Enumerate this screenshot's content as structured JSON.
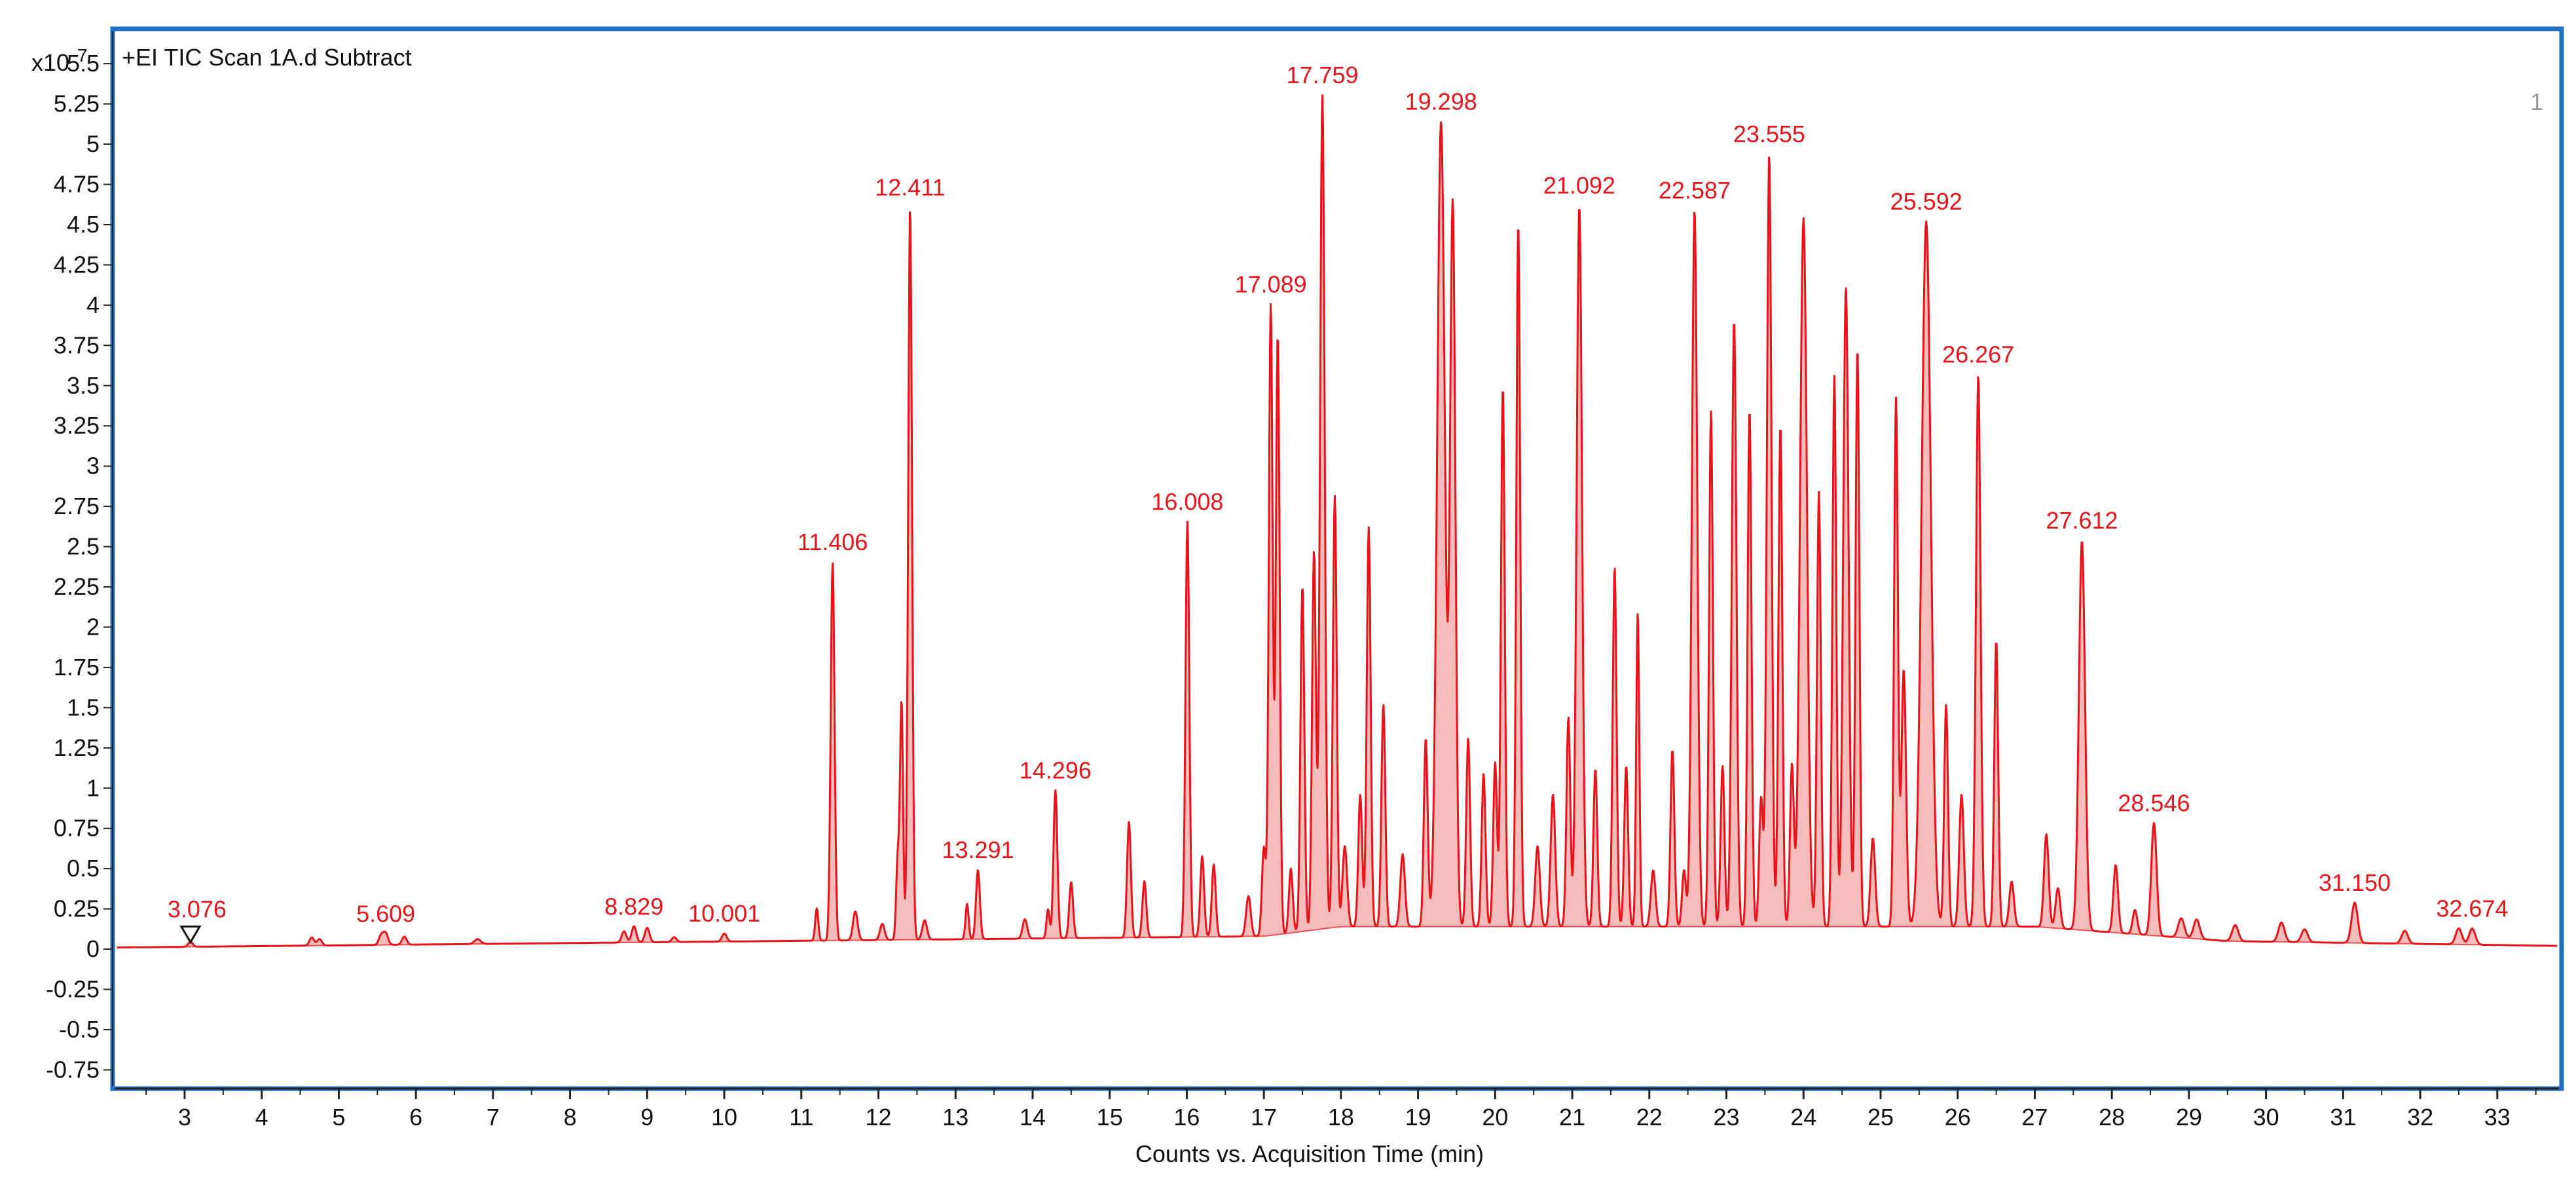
{
  "header": {
    "scale_label": "x10",
    "scale_exponent": "7",
    "trace_title": "+EI TIC Scan 1A.d  Subtract",
    "pane_number": "1"
  },
  "colors": {
    "trace": "#e8141a",
    "fill": "#f4b0b0",
    "frame": "#1f6fc4",
    "axis": "#222222"
  },
  "chart_data": {
    "type": "line",
    "title": "+EI TIC Scan 1A.d  Subtract",
    "xlabel": "Counts vs. Acquisition Time (min)",
    "ylabel": "",
    "y_scale_note": "x10^7",
    "xlim": [
      2.1,
      33.8
    ],
    "ylim": [
      -0.85,
      5.7
    ],
    "x_ticks": [
      3,
      4,
      5,
      6,
      7,
      8,
      9,
      10,
      11,
      12,
      13,
      14,
      15,
      16,
      17,
      18,
      19,
      20,
      21,
      22,
      23,
      24,
      25,
      26,
      27,
      28,
      29,
      30,
      31,
      32,
      33
    ],
    "y_ticks": [
      5.5,
      5.25,
      5,
      4.75,
      4.5,
      4.25,
      4,
      3.75,
      3.5,
      3.25,
      3,
      2.75,
      2.5,
      2.25,
      2,
      1.75,
      1.5,
      1.25,
      1,
      0.75,
      0.5,
      0.25,
      0,
      -0.25,
      -0.5,
      -0.75
    ],
    "y_tick_labels": [
      "5.5",
      "5.25",
      "5",
      "4.75",
      "4.5",
      "4.25",
      "4",
      "3.75",
      "3.5",
      "3.25",
      "3",
      "2.75",
      "2.5",
      "2.25",
      "2",
      "1.75",
      "1.5",
      "1.25",
      "1",
      "0.75",
      "0.5",
      "0.25",
      "0",
      "-0.25",
      "-0.5",
      "-0.75"
    ],
    "marker": {
      "x": 3.076,
      "label": "3.076"
    },
    "labeled_peaks": [
      {
        "label": "5.609",
        "x": 5.609,
        "y": 0.07
      },
      {
        "label": "8.829",
        "x": 8.829,
        "y": 0.1
      },
      {
        "label": "10.001",
        "x": 10.001,
        "y": 0.05
      },
      {
        "label": "11.406",
        "x": 11.406,
        "y": 2.35
      },
      {
        "label": "12.411",
        "x": 12.411,
        "y": 4.55
      },
      {
        "label": "13.291",
        "x": 13.291,
        "y": 0.43
      },
      {
        "label": "14.296",
        "x": 14.296,
        "y": 0.92
      },
      {
        "label": "16.008",
        "x": 16.008,
        "y": 2.58
      },
      {
        "label": "17.089",
        "x": 17.089,
        "y": 3.92
      },
      {
        "label": "17.759",
        "x": 17.759,
        "y": 5.18
      },
      {
        "label": "19.298",
        "x": 19.298,
        "y": 5.0
      },
      {
        "label": "21.092",
        "x": 21.092,
        "y": 4.48
      },
      {
        "label": "22.587",
        "x": 22.587,
        "y": 4.45
      },
      {
        "label": "23.555",
        "x": 23.555,
        "y": 4.8
      },
      {
        "label": "25.592",
        "x": 25.592,
        "y": 4.38
      },
      {
        "label": "26.267",
        "x": 26.267,
        "y": 3.43
      },
      {
        "label": "27.612",
        "x": 27.612,
        "y": 2.42
      },
      {
        "label": "28.546",
        "x": 28.546,
        "y": 0.7
      },
      {
        "label": "31.150",
        "x": 31.15,
        "y": 0.25
      },
      {
        "label": "32.674",
        "x": 32.674,
        "y": 0.1
      }
    ],
    "peaks": [
      [
        3.076,
        0.03,
        0.03
      ],
      [
        4.65,
        0.05,
        0.03
      ],
      [
        4.75,
        0.04,
        0.03
      ],
      [
        5.55,
        0.06,
        0.03
      ],
      [
        5.609,
        0.07,
        0.03
      ],
      [
        5.85,
        0.05,
        0.03
      ],
      [
        6.8,
        0.03,
        0.04
      ],
      [
        8.7,
        0.07,
        0.03
      ],
      [
        8.829,
        0.1,
        0.03
      ],
      [
        9.0,
        0.09,
        0.03
      ],
      [
        9.35,
        0.03,
        0.03
      ],
      [
        10.001,
        0.05,
        0.03
      ],
      [
        11.2,
        0.2,
        0.02
      ],
      [
        11.406,
        2.35,
        0.025
      ],
      [
        11.7,
        0.18,
        0.03
      ],
      [
        12.05,
        0.1,
        0.03
      ],
      [
        12.25,
        0.5,
        0.02
      ],
      [
        12.3,
        1.47,
        0.02
      ],
      [
        12.411,
        4.55,
        0.025
      ],
      [
        12.6,
        0.12,
        0.03
      ],
      [
        13.15,
        0.22,
        0.02
      ],
      [
        13.291,
        0.43,
        0.025
      ],
      [
        13.9,
        0.12,
        0.03
      ],
      [
        14.2,
        0.18,
        0.02
      ],
      [
        14.296,
        0.92,
        0.025
      ],
      [
        14.5,
        0.35,
        0.025
      ],
      [
        15.25,
        0.72,
        0.025
      ],
      [
        15.45,
        0.35,
        0.025
      ],
      [
        16.008,
        2.58,
        0.025
      ],
      [
        16.2,
        0.5,
        0.025
      ],
      [
        16.35,
        0.45,
        0.025
      ],
      [
        16.8,
        0.25,
        0.03
      ],
      [
        17.0,
        0.55,
        0.025
      ],
      [
        17.089,
        3.92,
        0.025
      ],
      [
        17.18,
        3.73,
        0.025
      ],
      [
        17.35,
        0.4,
        0.025
      ],
      [
        17.5,
        2.15,
        0.025
      ],
      [
        17.65,
        2.35,
        0.025
      ],
      [
        17.759,
        5.18,
        0.03
      ],
      [
        17.92,
        2.68,
        0.025
      ],
      [
        18.05,
        0.5,
        0.03
      ],
      [
        18.25,
        0.82,
        0.025
      ],
      [
        18.36,
        2.48,
        0.025
      ],
      [
        18.55,
        1.38,
        0.025
      ],
      [
        18.8,
        0.45,
        0.03
      ],
      [
        19.1,
        1.17,
        0.025
      ],
      [
        19.298,
        5.0,
        0.05
      ],
      [
        19.45,
        4.47,
        0.035
      ],
      [
        19.65,
        1.17,
        0.025
      ],
      [
        19.85,
        0.95,
        0.025
      ],
      [
        20.0,
        1.02,
        0.025
      ],
      [
        20.1,
        3.36,
        0.025
      ],
      [
        20.3,
        4.38,
        0.025
      ],
      [
        20.55,
        0.5,
        0.03
      ],
      [
        20.75,
        0.82,
        0.03
      ],
      [
        20.95,
        1.3,
        0.025
      ],
      [
        21.092,
        4.48,
        0.035
      ],
      [
        21.3,
        0.98,
        0.025
      ],
      [
        21.55,
        2.23,
        0.025
      ],
      [
        21.7,
        1.0,
        0.025
      ],
      [
        21.85,
        1.95,
        0.02
      ],
      [
        22.05,
        0.35,
        0.03
      ],
      [
        22.3,
        1.1,
        0.025
      ],
      [
        22.45,
        0.35,
        0.025
      ],
      [
        22.587,
        4.45,
        0.035
      ],
      [
        22.8,
        3.2,
        0.025
      ],
      [
        22.95,
        1.0,
        0.025
      ],
      [
        23.1,
        3.77,
        0.03
      ],
      [
        23.3,
        3.22,
        0.025
      ],
      [
        23.45,
        0.8,
        0.025
      ],
      [
        23.555,
        4.8,
        0.03
      ],
      [
        23.7,
        3.12,
        0.025
      ],
      [
        23.85,
        1.0,
        0.025
      ],
      [
        24.0,
        4.4,
        0.045
      ],
      [
        24.2,
        2.7,
        0.025
      ],
      [
        24.4,
        3.42,
        0.025
      ],
      [
        24.55,
        3.97,
        0.035
      ],
      [
        24.7,
        3.6,
        0.025
      ],
      [
        24.9,
        0.55,
        0.03
      ],
      [
        25.2,
        3.28,
        0.025
      ],
      [
        25.3,
        1.6,
        0.03
      ],
      [
        25.592,
        4.38,
        0.06
      ],
      [
        25.85,
        1.38,
        0.025
      ],
      [
        26.05,
        0.82,
        0.03
      ],
      [
        26.267,
        3.43,
        0.03
      ],
      [
        26.5,
        1.78,
        0.025
      ],
      [
        26.7,
        0.28,
        0.03
      ],
      [
        27.15,
        0.58,
        0.03
      ],
      [
        27.3,
        0.25,
        0.03
      ],
      [
        27.612,
        2.42,
        0.04
      ],
      [
        28.05,
        0.42,
        0.03
      ],
      [
        28.3,
        0.15,
        0.03
      ],
      [
        28.546,
        0.7,
        0.035
      ],
      [
        28.9,
        0.12,
        0.04
      ],
      [
        29.1,
        0.12,
        0.04
      ],
      [
        29.6,
        0.1,
        0.04
      ],
      [
        30.2,
        0.12,
        0.04
      ],
      [
        30.5,
        0.08,
        0.04
      ],
      [
        31.15,
        0.25,
        0.04
      ],
      [
        31.8,
        0.08,
        0.04
      ],
      [
        32.5,
        0.1,
        0.04
      ],
      [
        32.674,
        0.1,
        0.04
      ]
    ],
    "grid": false,
    "legend": "none"
  }
}
